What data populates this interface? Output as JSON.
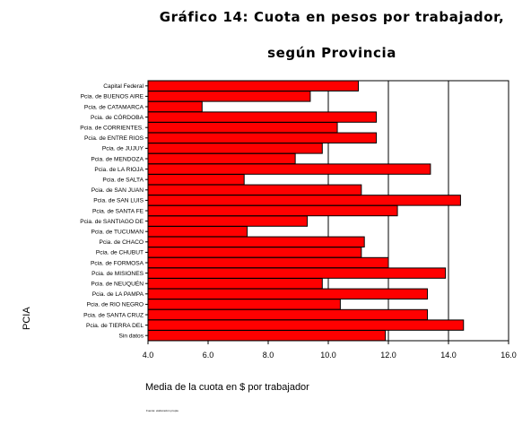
{
  "chart_data": {
    "type": "bar",
    "orientation": "horizontal",
    "title": "Gráfico 14: Cuota en pesos por trabajador,",
    "subtitle": "según Provincia",
    "xlabel": "Media de la cuota en $ por trabajador",
    "ylabel": "PCIA",
    "xlim": [
      4.0,
      16.0
    ],
    "xticks": [
      "4.0",
      "6.0",
      "8.0",
      "10.0",
      "12.0",
      "14.0",
      "16.0"
    ],
    "xtick_values": [
      4,
      6,
      8,
      10,
      12,
      14,
      16
    ],
    "gridlines_at": [
      10,
      12,
      14
    ],
    "grid": true,
    "bar_color": "#ff0000",
    "categories": [
      "Capital Federal",
      "Pcia. de BUENOS AIRE",
      "Pcia. de CATAMARCA",
      "Pcia. de CÓRDOBA",
      "Pcia. de CORRIENTES.",
      "Pcia. de ENTRE RIOS",
      "Pcia. de JUJUY",
      "Pcia. de MENDOZA",
      "Pcia. de LA RIOJA",
      "Pcia. de SALTA",
      "Pcia. de SAN JUAN",
      "Pcia. de SAN LUIS",
      "Pcia. de SANTA FE",
      "Pcia. de SANTIAGO DE",
      "Pcia. de TUCUMAN",
      "Pcia. de CHACO",
      "Pcia. de CHUBUT",
      "Pcia. de FORMOSA",
      "Pcia. de MISIONES",
      "Pcia. de NEUQUÉN",
      "Pcia. de LA PAMPA",
      "Pcia. de RIO NEGRO",
      "Pcia. de SANTA CRUZ",
      "Pcia. de TIERRA DEL",
      "Sin datos"
    ],
    "values": [
      11.0,
      9.4,
      5.8,
      11.6,
      10.3,
      11.6,
      9.8,
      8.9,
      13.4,
      7.2,
      11.1,
      14.4,
      12.3,
      9.3,
      7.3,
      11.2,
      11.1,
      12.0,
      13.9,
      9.8,
      13.3,
      10.4,
      13.3,
      14.5,
      11.9
    ]
  },
  "footnote": "Fuente: elaboración propia"
}
